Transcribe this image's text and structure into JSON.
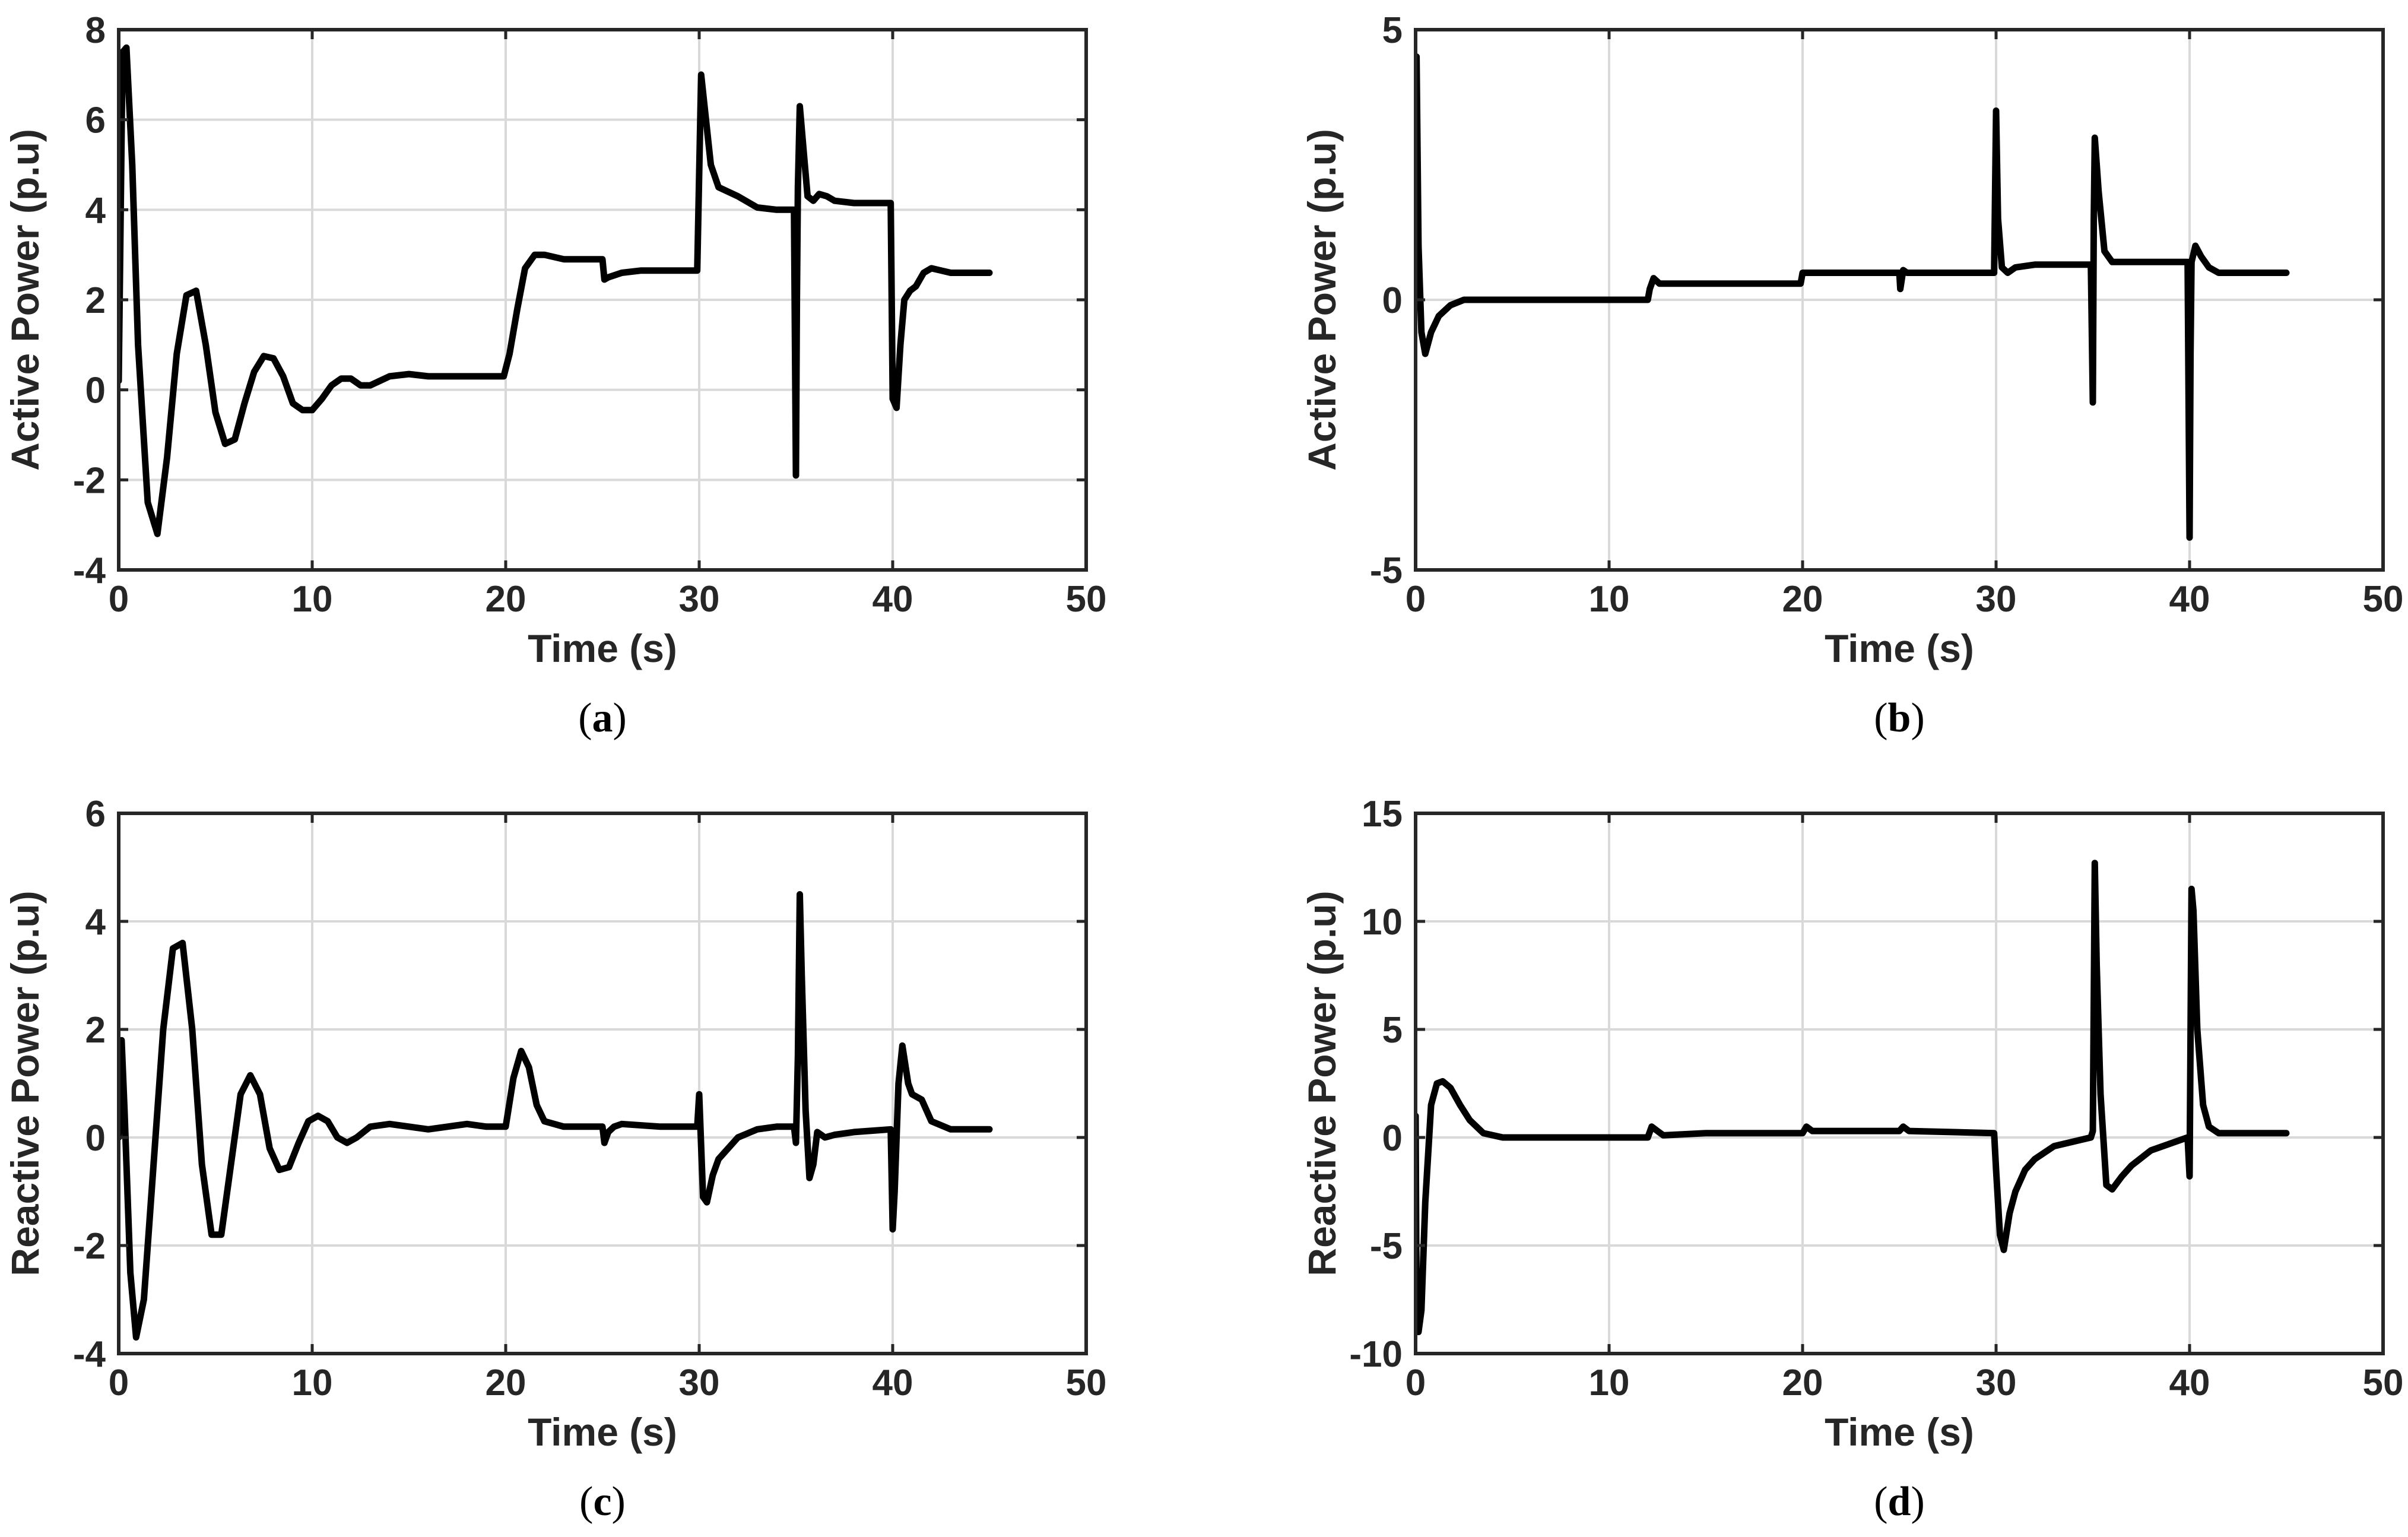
{
  "chart_data": [
    {
      "type": "line",
      "panel": "a",
      "caption_open": "(",
      "caption_letter": "a",
      "caption_close": ")",
      "xlabel": "Time (s)",
      "ylabel": "Active Power (p.u)",
      "xlim": [
        0,
        50
      ],
      "ylim": [
        -4,
        8
      ],
      "xticks": [
        0,
        10,
        20,
        30,
        40,
        50
      ],
      "yticks": [
        -4,
        -2,
        0,
        2,
        4,
        6,
        8
      ],
      "grid": true,
      "line_color": "#000000",
      "x": [
        0,
        0.2,
        0.4,
        0.7,
        1.0,
        1.5,
        2.0,
        2.5,
        3.0,
        3.5,
        4.0,
        4.5,
        5.0,
        5.5,
        6.0,
        6.5,
        7.0,
        7.5,
        8.0,
        8.5,
        9.0,
        9.5,
        10.0,
        10.5,
        11.0,
        11.5,
        12.0,
        12.5,
        13.0,
        14.0,
        15.0,
        16.0,
        17.0,
        18.0,
        19.0,
        19.9,
        20.2,
        20.6,
        21.0,
        21.5,
        22.0,
        23.0,
        24.0,
        25.0,
        25.1,
        25.3,
        26.0,
        27.0,
        28.0,
        29.0,
        29.9,
        30.1,
        30.3,
        30.6,
        31.0,
        32.0,
        33.0,
        34.0,
        34.9,
        35.0,
        35.05,
        35.1,
        35.2,
        35.4,
        35.6,
        35.9,
        36.2,
        36.6,
        37.0,
        38.0,
        39.0,
        39.9,
        40.0,
        40.2,
        40.4,
        40.6,
        40.9,
        41.2,
        41.6,
        42.0,
        42.5,
        43.0,
        44.0,
        45.0
      ],
      "y": [
        0.2,
        7.5,
        7.6,
        5.0,
        1.0,
        -2.5,
        -3.2,
        -1.5,
        0.8,
        2.1,
        2.2,
        1.0,
        -0.5,
        -1.2,
        -1.1,
        -0.3,
        0.4,
        0.75,
        0.7,
        0.3,
        -0.3,
        -0.45,
        -0.45,
        -0.2,
        0.1,
        0.25,
        0.25,
        0.1,
        0.1,
        0.3,
        0.35,
        0.3,
        0.3,
        0.3,
        0.3,
        0.3,
        0.8,
        1.8,
        2.7,
        3.0,
        3.0,
        2.9,
        2.9,
        2.9,
        2.45,
        2.5,
        2.6,
        2.65,
        2.65,
        2.65,
        2.65,
        7.0,
        6.2,
        5.0,
        4.5,
        4.3,
        4.05,
        4.0,
        4.0,
        -1.9,
        2.0,
        4.5,
        6.3,
        5.3,
        4.3,
        4.2,
        4.35,
        4.3,
        4.2,
        4.15,
        4.15,
        4.15,
        -0.2,
        -0.4,
        1.0,
        2.0,
        2.2,
        2.3,
        2.6,
        2.7,
        2.65,
        2.6,
        2.6,
        2.6
      ]
    },
    {
      "type": "line",
      "panel": "b",
      "caption_open": "(",
      "caption_letter": "b",
      "caption_close": ")",
      "xlabel": "Time (s)",
      "ylabel": "Active Power (p.u)",
      "xlim": [
        0,
        50
      ],
      "ylim": [
        -5,
        5
      ],
      "xticks": [
        0,
        10,
        20,
        30,
        40,
        50
      ],
      "yticks": [
        -5,
        0,
        5
      ],
      "grid": true,
      "line_color": "#000000",
      "x": [
        0,
        0.05,
        0.15,
        0.3,
        0.5,
        0.8,
        1.2,
        1.8,
        2.5,
        4.0,
        8.0,
        12.0,
        12.1,
        12.3,
        12.6,
        15.0,
        19.9,
        20.0,
        20.3,
        25.0,
        25.05,
        25.2,
        25.4,
        29.9,
        30.0,
        30.1,
        30.3,
        30.6,
        31.0,
        32.0,
        34.9,
        35.0,
        35.05,
        35.1,
        35.3,
        35.6,
        36.0,
        37.0,
        39.9,
        40.0,
        40.05,
        40.1,
        40.3,
        40.6,
        41.0,
        41.5,
        42.0,
        45.0
      ],
      "y": [
        0.0,
        4.5,
        1.0,
        -0.6,
        -1.0,
        -0.6,
        -0.3,
        -0.1,
        0.0,
        0.0,
        0.0,
        0.0,
        0.2,
        0.4,
        0.3,
        0.3,
        0.3,
        0.5,
        0.5,
        0.5,
        0.2,
        0.55,
        0.5,
        0.5,
        3.5,
        1.5,
        0.6,
        0.5,
        0.6,
        0.65,
        0.65,
        -1.9,
        1.5,
        3.0,
        2.0,
        0.9,
        0.7,
        0.7,
        0.7,
        -4.4,
        -1.0,
        0.7,
        1.0,
        0.8,
        0.6,
        0.5,
        0.5,
        0.5
      ]
    },
    {
      "type": "line",
      "panel": "c",
      "caption_open": "(",
      "caption_letter": "c",
      "caption_close": ")",
      "xlabel": "Time (s)",
      "ylabel": "Reactive Power (p.u)",
      "xlim": [
        0,
        50
      ],
      "ylim": [
        -4,
        6
      ],
      "xticks": [
        0,
        10,
        20,
        30,
        40,
        50
      ],
      "yticks": [
        -4,
        -2,
        0,
        2,
        4,
        6
      ],
      "grid": true,
      "line_color": "#000000",
      "x": [
        0,
        0.15,
        0.3,
        0.6,
        0.9,
        1.3,
        1.8,
        2.3,
        2.8,
        3.3,
        3.8,
        4.3,
        4.8,
        5.3,
        5.8,
        6.3,
        6.8,
        7.3,
        7.8,
        8.3,
        8.8,
        9.3,
        9.8,
        10.3,
        10.8,
        11.3,
        11.8,
        12.3,
        13.0,
        14.0,
        15.0,
        16.0,
        17.0,
        18.0,
        19.0,
        20.0,
        20.4,
        20.8,
        21.2,
        21.6,
        22.0,
        23.0,
        24.5,
        25.0,
        25.1,
        25.3,
        25.6,
        26.0,
        28.0,
        29.9,
        30.0,
        30.2,
        30.4,
        30.7,
        31.0,
        32.0,
        33.0,
        34.0,
        34.9,
        35.0,
        35.1,
        35.2,
        35.3,
        35.5,
        35.7,
        35.9,
        36.1,
        36.5,
        37.0,
        38.0,
        39.9,
        40.0,
        40.1,
        40.3,
        40.5,
        40.8,
        41.0,
        41.5,
        42.0,
        43.0,
        44.0,
        45.0
      ],
      "y": [
        0.0,
        1.8,
        0.5,
        -2.5,
        -3.7,
        -3.0,
        -0.5,
        2.0,
        3.5,
        3.6,
        2.0,
        -0.5,
        -1.8,
        -1.8,
        -0.5,
        0.8,
        1.15,
        0.8,
        -0.2,
        -0.6,
        -0.55,
        -0.1,
        0.3,
        0.4,
        0.3,
        0.0,
        -0.1,
        0.0,
        0.2,
        0.25,
        0.2,
        0.15,
        0.2,
        0.25,
        0.2,
        0.2,
        1.1,
        1.6,
        1.3,
        0.6,
        0.3,
        0.2,
        0.2,
        0.2,
        -0.1,
        0.1,
        0.2,
        0.25,
        0.2,
        0.2,
        0.8,
        -1.1,
        -1.2,
        -0.7,
        -0.4,
        0.0,
        0.15,
        0.2,
        0.2,
        -0.1,
        1.5,
        4.5,
        3.0,
        0.5,
        -0.75,
        -0.5,
        0.1,
        0.0,
        0.05,
        0.1,
        0.15,
        -1.7,
        -1.0,
        1.0,
        1.7,
        1.0,
        0.8,
        0.7,
        0.3,
        0.15,
        0.15,
        0.15
      ]
    },
    {
      "type": "line",
      "panel": "d",
      "caption_open": "(",
      "caption_letter": "d",
      "caption_close": ")",
      "xlabel": "Time (s)",
      "ylabel": "Reactive Power (p.u)",
      "xlim": [
        0,
        50
      ],
      "ylim": [
        -10,
        15
      ],
      "xticks": [
        0,
        10,
        20,
        30,
        40,
        50
      ],
      "yticks": [
        -10,
        -5,
        0,
        5,
        10,
        15
      ],
      "grid": true,
      "line_color": "#000000",
      "x": [
        0,
        0.05,
        0.15,
        0.3,
        0.5,
        0.8,
        1.1,
        1.4,
        1.8,
        2.3,
        2.8,
        3.5,
        4.5,
        8.0,
        12.0,
        12.2,
        12.5,
        12.8,
        15.0,
        20.0,
        20.2,
        20.5,
        25.0,
        25.2,
        25.5,
        29.9,
        30.0,
        30.2,
        30.4,
        30.7,
        31.0,
        31.5,
        32.0,
        33.0,
        34.9,
        35.0,
        35.1,
        35.2,
        35.4,
        35.7,
        36.0,
        36.5,
        37.0,
        38.0,
        39.9,
        40.0,
        40.1,
        40.2,
        40.4,
        40.7,
        41.0,
        41.5,
        42.0,
        45.0
      ],
      "y": [
        1.0,
        -8.0,
        -9.0,
        -8.0,
        -3.0,
        1.5,
        2.5,
        2.6,
        2.3,
        1.5,
        0.8,
        0.2,
        0.0,
        0.0,
        0.0,
        0.5,
        0.3,
        0.1,
        0.2,
        0.2,
        0.5,
        0.3,
        0.3,
        0.5,
        0.3,
        0.2,
        -1.5,
        -4.5,
        -5.2,
        -3.5,
        -2.5,
        -1.5,
        -1.0,
        -0.4,
        0.0,
        0.3,
        12.7,
        8.0,
        2.0,
        -2.2,
        -2.4,
        -1.8,
        -1.3,
        -0.6,
        0.0,
        -1.8,
        11.5,
        10.5,
        5.0,
        1.5,
        0.5,
        0.2,
        0.2,
        0.2
      ]
    }
  ]
}
